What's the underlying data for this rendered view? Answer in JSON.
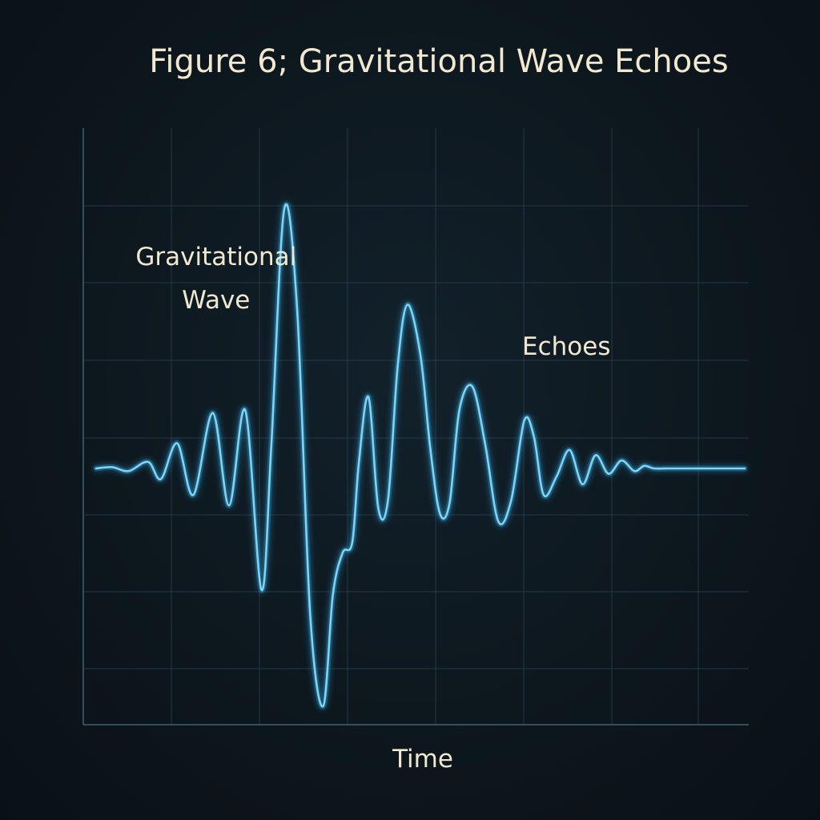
{
  "chart_data": {
    "type": "line",
    "title": "Figure 6; Gravitational Wave Echoes",
    "xlabel": "Time",
    "ylabel": "",
    "xlim": [
      0,
      100
    ],
    "ylim": [
      -1,
      1
    ],
    "grid": true,
    "colors": {
      "line": "#7fd4f5",
      "glow": "#2f9fd6",
      "text": "#f1e8cf",
      "grid": "#2a4352",
      "background": "#0d171e"
    },
    "annotations": [
      {
        "text_lines": [
          "Gravitational",
          "Wave"
        ],
        "x": 18.5,
        "y": 0.77
      },
      {
        "text": "Echoes",
        "x": 72.5,
        "y": 0.43
      }
    ],
    "series": [
      {
        "x": [
          0,
          2.5,
          5,
          8,
          10,
          12.5,
          15,
          18,
          20.5,
          23,
          25.5,
          27,
          29,
          31,
          33,
          35,
          36.5,
          38,
          39.5,
          40.5,
          42,
          43.5,
          45,
          46.5,
          48,
          50,
          51.5,
          53,
          54.5,
          56,
          58,
          60,
          62,
          64,
          66,
          67.5,
          69,
          71,
          73,
          75,
          77,
          79,
          81,
          83,
          84.5,
          86,
          88,
          90,
          92.5,
          95,
          97.5,
          100
        ],
        "y": [
          0.0,
          0.005,
          -0.01,
          0.025,
          -0.04,
          0.095,
          -0.1,
          0.21,
          -0.14,
          0.22,
          -0.46,
          0.08,
          0.98,
          0.6,
          -0.55,
          -0.9,
          -0.48,
          -0.32,
          -0.28,
          0.02,
          0.27,
          -0.15,
          -0.12,
          0.39,
          0.62,
          0.43,
          0.08,
          -0.17,
          -0.13,
          0.22,
          0.31,
          0.09,
          -0.2,
          -0.12,
          0.18,
          0.12,
          -0.1,
          -0.03,
          0.07,
          -0.06,
          0.05,
          -0.02,
          0.03,
          -0.01,
          0.01,
          0.0,
          0.0,
          0.0,
          0.0,
          0.0,
          0.0,
          0.0
        ]
      }
    ]
  }
}
